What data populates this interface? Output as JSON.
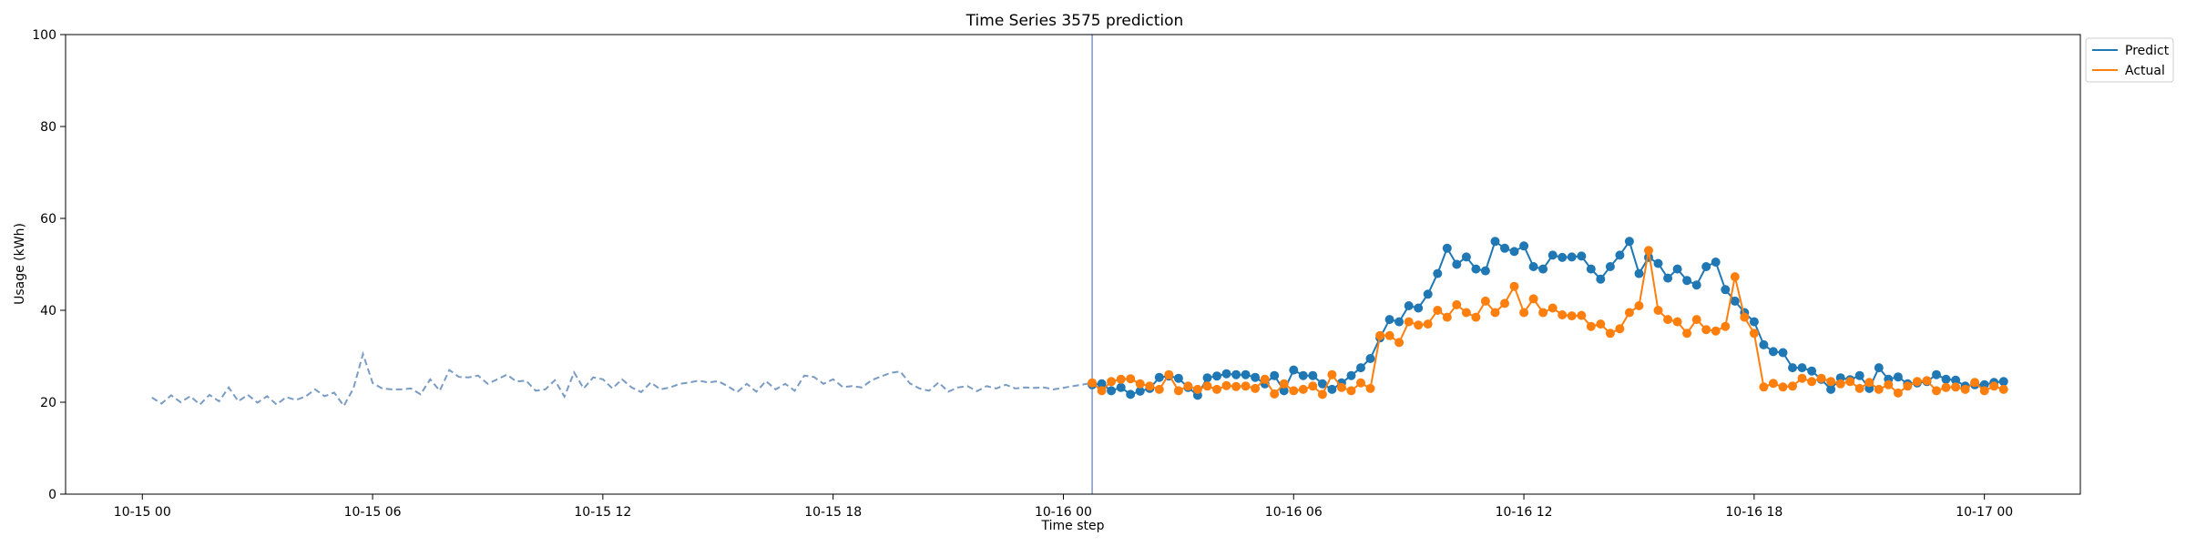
{
  "chart_data": {
    "type": "line",
    "title": "Time Series 3575 prediction",
    "xlabel": "Time step",
    "ylabel": "Usage (kWh)",
    "ylim": [
      0,
      100
    ],
    "yticks": [
      0,
      20,
      40,
      60,
      80,
      100
    ],
    "xlim": [
      "2023-10-14T22:00",
      "2023-10-17T02:30"
    ],
    "xticks": [
      {
        "t": "2023-10-15T00:00",
        "label": "10-15 00"
      },
      {
        "t": "2023-10-15T06:00",
        "label": "10-15 06"
      },
      {
        "t": "2023-10-15T12:00",
        "label": "10-15 12"
      },
      {
        "t": "2023-10-15T18:00",
        "label": "10-15 18"
      },
      {
        "t": "2023-10-16T00:00",
        "label": "10-16 00"
      },
      {
        "t": "2023-10-16T06:00",
        "label": "10-16 06"
      },
      {
        "t": "2023-10-16T12:00",
        "label": "10-16 12"
      },
      {
        "t": "2023-10-16T18:00",
        "label": "10-16 18"
      },
      {
        "t": "2023-10-17T00:00",
        "label": "10-17 00"
      }
    ],
    "forecast_start": "2023-10-16T00:45",
    "legend_position": "top-right, outside",
    "grid": false,
    "history": {
      "start": "2023-10-15T00:15",
      "interval_minutes": 15,
      "color": "#7a9cc4",
      "style": "dashed",
      "values": [
        21.0,
        19.7,
        21.5,
        20.0,
        21.3,
        19.5,
        21.6,
        20.2,
        23.2,
        20.2,
        21.6,
        19.9,
        21.3,
        19.5,
        21.1,
        20.5,
        21.2,
        22.8,
        21.3,
        22.1,
        19.2,
        23.0,
        30.5,
        24.2,
        23.0,
        22.8,
        22.8,
        23.0,
        21.7,
        25.0,
        22.5,
        27.0,
        25.5,
        25.4,
        25.8,
        24.0,
        25.0,
        26.0,
        24.5,
        24.7,
        22.5,
        22.8,
        24.8,
        21.2,
        26.5,
        23.0,
        25.4,
        25.0,
        23.0,
        25.0,
        23.2,
        22.2,
        24.3,
        22.8,
        23.2,
        24.0,
        24.3,
        24.7,
        24.3,
        24.6,
        23.5,
        22.2,
        24.0,
        22.3,
        24.6,
        22.8,
        24.0,
        22.5,
        25.8,
        25.5,
        24.0,
        25.0,
        23.3,
        23.5,
        23.2,
        24.8,
        25.6,
        26.4,
        26.7,
        24.1,
        23.0,
        22.5,
        24.3,
        22.3,
        23.2,
        23.5,
        22.4,
        23.5,
        23.0,
        23.8,
        23.0,
        23.2,
        23.1,
        23.2,
        22.8
      ]
    },
    "series": [
      {
        "name": "Predict",
        "color": "#1f77b4",
        "start": "2023-10-16T00:45",
        "interval_minutes": 15,
        "values": [
          23.8,
          24.0,
          22.5,
          23.2,
          21.7,
          22.4,
          23.0,
          25.4,
          25.7,
          25.2,
          23.2,
          21.5,
          25.3,
          25.7,
          26.2,
          26.0,
          26.0,
          25.4,
          24.0,
          25.8,
          22.5,
          27.0,
          25.8,
          25.8,
          24.0,
          22.8,
          24.2,
          25.8,
          27.5,
          29.5,
          34.0,
          38.0,
          37.5,
          41.0,
          40.5,
          43.5,
          48.0,
          53.5,
          50.0,
          51.6,
          49.0,
          48.6,
          55.0,
          53.5,
          52.8,
          54.0,
          49.5,
          49.0,
          52.0,
          51.5,
          51.6,
          51.8,
          49.0,
          46.8,
          49.5,
          52.0,
          55.0,
          48.0,
          51.5,
          50.2,
          47.0,
          49.0,
          46.5,
          45.5,
          49.5,
          50.5,
          44.5,
          42.0,
          39.5,
          37.5,
          32.5,
          31.0,
          30.8,
          27.5,
          27.5,
          26.8,
          25.0,
          22.8,
          25.3,
          24.9,
          25.8,
          23.0,
          27.5,
          25.0,
          25.5,
          24.0,
          24.2,
          24.5,
          26.0,
          25.0,
          24.8,
          23.5,
          23.8,
          23.8,
          24.3,
          24.5
        ]
      },
      {
        "name": "Actual",
        "color": "#ff7f0e",
        "start": "2023-10-16T00:45",
        "interval_minutes": 15,
        "values": [
          24.2,
          22.5,
          24.5,
          25.0,
          25.1,
          24.0,
          23.5,
          22.8,
          26.0,
          22.5,
          23.5,
          22.8,
          23.5,
          22.8,
          23.6,
          23.4,
          23.5,
          23.0,
          25.0,
          21.8,
          24.0,
          22.5,
          22.8,
          23.5,
          21.7,
          26.0,
          23.2,
          22.5,
          24.2,
          23.0,
          34.5,
          34.5,
          33.0,
          37.5,
          36.8,
          37.0,
          40.0,
          38.5,
          41.2,
          39.5,
          38.5,
          42.0,
          39.5,
          41.5,
          45.2,
          39.5,
          42.5,
          39.5,
          40.5,
          39.0,
          38.8,
          38.9,
          36.5,
          37.0,
          35.0,
          36.0,
          39.5,
          41.0,
          53.0,
          40.0,
          38.0,
          37.5,
          35.0,
          38.0,
          35.8,
          35.5,
          36.5,
          47.3,
          38.5,
          35.0,
          23.3,
          24.1,
          23.3,
          23.5,
          25.2,
          24.5,
          25.2,
          24.5,
          24.0,
          24.5,
          23.0,
          24.3,
          22.8,
          23.8,
          22.0,
          23.5,
          24.5,
          24.7,
          22.5,
          23.2,
          23.3,
          22.8,
          24.3,
          22.5,
          23.5,
          22.8
        ]
      }
    ]
  }
}
